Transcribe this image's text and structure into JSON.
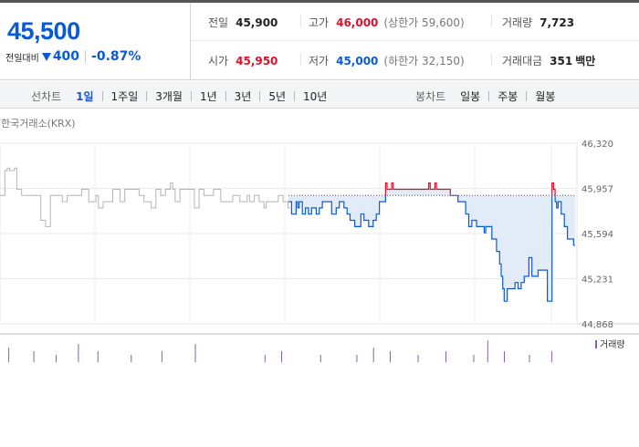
{
  "quote": {
    "price": "45,500",
    "change_label": "전일대비",
    "change_amount": "400",
    "change_percent": "-0.87%"
  },
  "stats": {
    "prev_close": {
      "label": "전일",
      "value": "45,900"
    },
    "high": {
      "label": "고가",
      "value": "46,000",
      "sub": "(상한가 59,600)"
    },
    "volume": {
      "label": "거래량",
      "value": "7,723"
    },
    "open": {
      "label": "시가",
      "value": "45,950"
    },
    "low": {
      "label": "저가",
      "value": "45,000",
      "sub": "(하한가 32,150)"
    },
    "trade_value": {
      "label": "거래대금",
      "value": "351",
      "unit": "백만"
    }
  },
  "toolbar": {
    "line_chart_label": "선차트",
    "periods": [
      "1일",
      "1주일",
      "3개월",
      "1년",
      "3년",
      "5년",
      "10년"
    ],
    "active_period": "1일",
    "candle_chart_label": "봉차트",
    "candles": [
      "일봉",
      "주봉",
      "월봉"
    ]
  },
  "colors": {
    "price_down": "#0a5ad6",
    "price_up": "#e0102a",
    "fill": "#e2ebf8",
    "history": "#b4b4b4",
    "volume": "#8a5fb8"
  },
  "chart_data": {
    "type": "line",
    "source": "한국거래소(KRX)",
    "ylim": [
      44868,
      46320
    ],
    "yticks": [
      "46,320",
      "45,957",
      "45,594",
      "45,231",
      "44,868"
    ],
    "reference_value": 45900,
    "volume_legend": "거래량",
    "history_series": [
      45900,
      45900,
      46100,
      46120,
      46100,
      46100,
      46120,
      45950,
      45950,
      45900,
      45900,
      45900,
      45900,
      45900,
      45900,
      45900,
      45900,
      45700,
      45700,
      45650,
      45650,
      45900,
      45900,
      45900,
      45900,
      45900,
      45850,
      45850,
      45900,
      45900,
      45900,
      45900,
      45900,
      45900,
      45950,
      45950,
      45950,
      45850,
      45850,
      45850,
      45900,
      45800,
      45800,
      45850,
      45850,
      45850,
      45850,
      45950,
      45950,
      45950,
      45850,
      45850,
      45950,
      45950,
      45950,
      45950,
      45950,
      45950,
      45900,
      45900,
      45850,
      45850,
      45850,
      45800,
      45800,
      45950,
      45950,
      45900,
      45900,
      45950,
      45950,
      46000,
      45950,
      45850,
      45850,
      45950,
      45950,
      45950,
      45950,
      45950,
      45950,
      45800,
      45800,
      45950,
      45950,
      45900,
      45900,
      45900,
      45900,
      45950,
      45950,
      45950,
      45850,
      45850,
      45850,
      45850,
      45850,
      45900,
      45900,
      45900,
      45850,
      45850,
      45850,
      45900,
      45850,
      45850,
      45900,
      45900,
      45850,
      45850,
      45800,
      45850,
      45850,
      45850,
      45850,
      45850,
      45900,
      45900,
      45850,
      45850,
      45800
    ],
    "today_series": [
      45850,
      45850,
      45750,
      45750,
      45750,
      45850,
      45800,
      45850,
      45850,
      45750,
      45750,
      45800,
      45800,
      45750,
      45750,
      45800,
      45800,
      45800,
      45750,
      45750,
      45800,
      45800,
      45850,
      45850,
      45850,
      45850,
      45850,
      45850,
      45750,
      45750,
      45750,
      45800,
      45800,
      45850,
      45850,
      45850,
      45800,
      45800,
      45750,
      45750,
      45700,
      45700,
      45700,
      45650,
      45650,
      45650,
      45650,
      45750,
      45750,
      45700,
      45700,
      45700,
      45650,
      45650,
      45650,
      45700,
      45700,
      45750,
      45750,
      45850,
      45850,
      45850,
      45850,
      46000,
      45950,
      45950,
      45950,
      46000,
      45950,
      45950,
      45950,
      45950,
      45950,
      45950,
      45950,
      45950,
      45950,
      45950,
      45950,
      45950,
      45950,
      45950,
      45950,
      45950,
      45950,
      45950,
      45950,
      45950,
      45950,
      45950,
      45950,
      46000,
      45950,
      45950,
      45950,
      46000,
      45950,
      45950,
      45950,
      45950,
      45950,
      45950,
      45950,
      45950,
      45950,
      45900,
      45900,
      45900,
      45900,
      45900,
      45850,
      45850,
      45850,
      45850,
      45850,
      45750,
      45750,
      45650,
      45650,
      45700,
      45700,
      45700,
      45650,
      45650,
      45650,
      45650,
      45650,
      45600,
      45650,
      45650,
      45650,
      45650,
      45550,
      45550,
      45550,
      45450,
      45450,
      45350,
      45250,
      45150,
      45050,
      45050,
      45150,
      45150,
      45150,
      45150,
      45150,
      45200,
      45200,
      45150,
      45150,
      45200,
      45200,
      45250,
      45250,
      45250,
      45400,
      45400,
      45250,
      45250,
      45250,
      45250,
      45300,
      45300,
      45300,
      45300,
      45300,
      45300,
      45050,
      45050,
      45050,
      46000,
      45950,
      45850,
      45800,
      45850,
      45850,
      45750,
      45750,
      45650,
      45650,
      45550,
      45550,
      45550,
      45550,
      45500
    ],
    "volume_bars": [
      [
        3,
        4
      ],
      [
        12,
        3
      ],
      [
        20,
        2
      ],
      [
        28,
        5
      ],
      [
        35,
        3
      ],
      [
        47,
        2
      ],
      [
        58,
        3
      ],
      [
        70,
        5
      ],
      [
        95,
        2
      ],
      [
        101,
        3
      ],
      [
        115,
        2
      ],
      [
        128,
        2
      ],
      [
        134,
        4
      ],
      [
        140,
        3
      ],
      [
        150,
        2
      ],
      [
        160,
        3
      ],
      [
        170,
        2
      ],
      [
        175,
        6
      ],
      [
        181,
        3
      ],
      [
        190,
        2
      ],
      [
        198,
        3
      ]
    ]
  }
}
